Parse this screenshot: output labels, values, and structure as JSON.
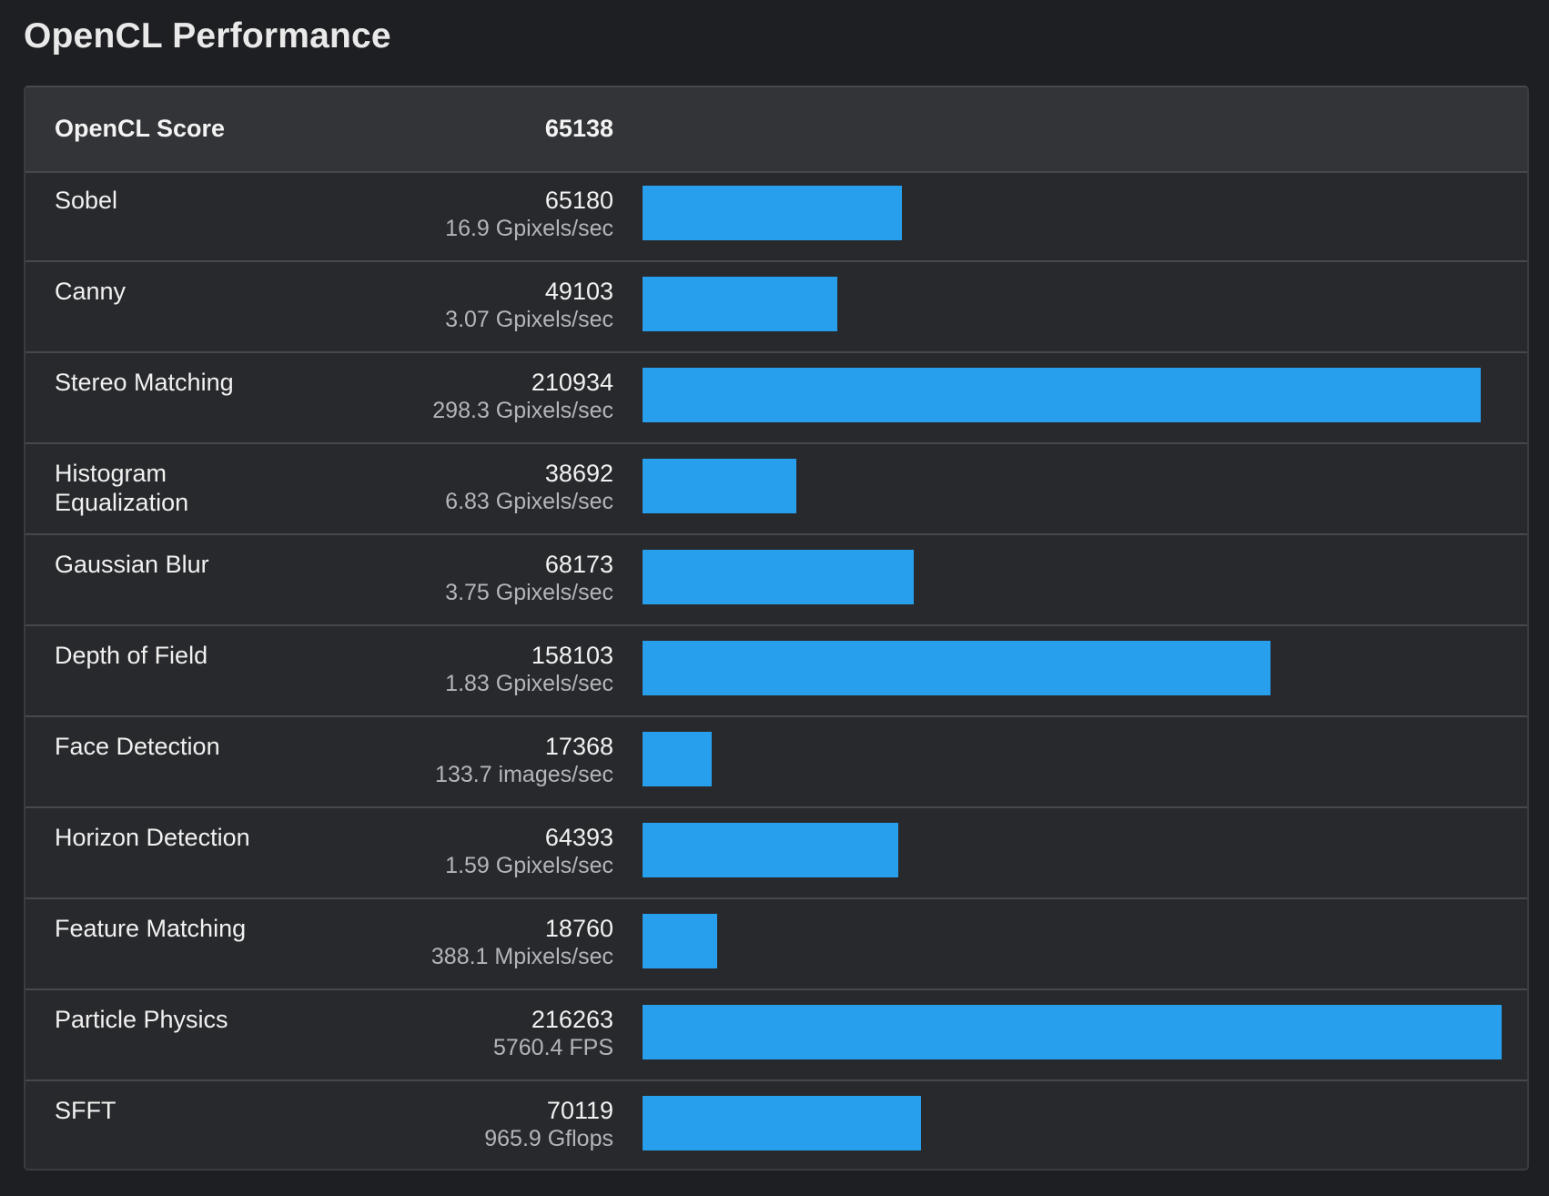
{
  "page": {
    "title": "OpenCL Performance"
  },
  "summary": {
    "label": "OpenCL Score",
    "value": "65138"
  },
  "benchmarks": [
    {
      "name": "Sobel",
      "score": "65180",
      "rate": "16.9 Gpixels/sec",
      "value": 65180
    },
    {
      "name": "Canny",
      "score": "49103",
      "rate": "3.07 Gpixels/sec",
      "value": 49103
    },
    {
      "name": "Stereo Matching",
      "score": "210934",
      "rate": "298.3 Gpixels/sec",
      "value": 210934
    },
    {
      "name": "Histogram Equalization",
      "score": "38692",
      "rate": "6.83 Gpixels/sec",
      "value": 38692
    },
    {
      "name": "Gaussian Blur",
      "score": "68173",
      "rate": "3.75 Gpixels/sec",
      "value": 68173
    },
    {
      "name": "Depth of Field",
      "score": "158103",
      "rate": "1.83 Gpixels/sec",
      "value": 158103
    },
    {
      "name": "Face Detection",
      "score": "17368",
      "rate": "133.7 images/sec",
      "value": 17368
    },
    {
      "name": "Horizon Detection",
      "score": "64393",
      "rate": "1.59 Gpixels/sec",
      "value": 64393
    },
    {
      "name": "Feature Matching",
      "score": "18760",
      "rate": "388.1 Mpixels/sec",
      "value": 18760
    },
    {
      "name": "Particle Physics",
      "score": "216263",
      "rate": "5760.4 FPS",
      "value": 216263
    },
    {
      "name": "SFFT",
      "score": "70119",
      "rate": "965.9 Gflops",
      "value": 70119
    }
  ],
  "colors": {
    "background": "#1e1f22",
    "panel": "#28292c",
    "header_row": "#333437",
    "bar": "#279fed",
    "secondary_text": "#b4b5b8"
  }
}
